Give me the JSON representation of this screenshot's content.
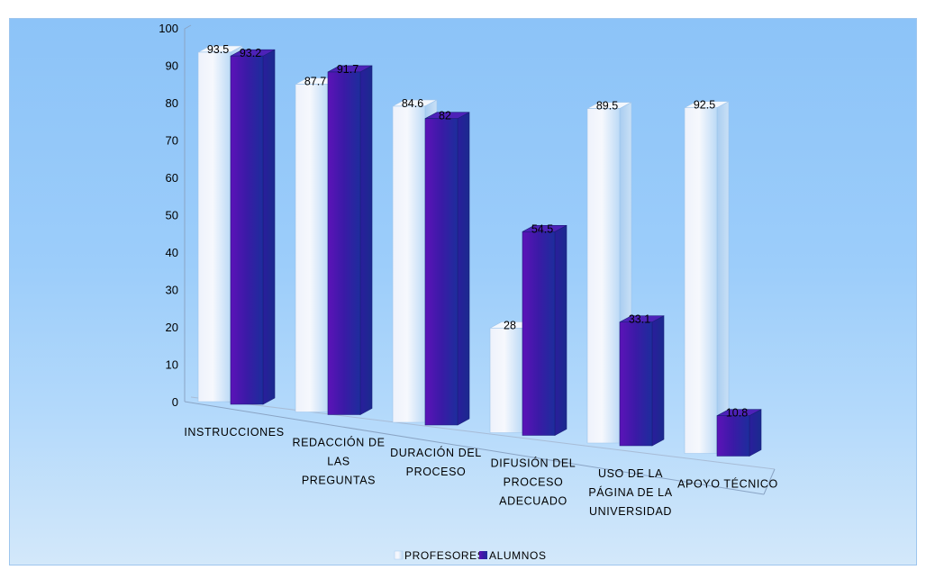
{
  "chart_data": {
    "type": "bar",
    "title": "",
    "xlabel": "",
    "ylabel": "",
    "ylim": [
      0,
      100
    ],
    "yticks": [
      0,
      10,
      20,
      30,
      40,
      50,
      60,
      70,
      80,
      90,
      100
    ],
    "categories": [
      [
        "INSTRUCCIONES"
      ],
      [
        "REDACCIÓN DE",
        "LAS",
        "PREGUNTAS"
      ],
      [
        "DURACIÓN DEL",
        "PROCESO"
      ],
      [
        "DIFUSIÓN DEL",
        "PROCESO",
        "ADECUADO"
      ],
      [
        "USO DE LA",
        "PÁGINA DE LA",
        "UNIVERSIDAD"
      ],
      [
        "APOYO TÉCNICO"
      ]
    ],
    "series": [
      {
        "name": "PROFESORES",
        "values": [
          93.5,
          87.7,
          84.6,
          28,
          89.5,
          92.5
        ],
        "labels": [
          "93.5",
          "87.7",
          "84.6",
          "28",
          "89.5",
          "92.5"
        ]
      },
      {
        "name": "ALUMNOS",
        "values": [
          93.2,
          91.7,
          82,
          54.5,
          33.1,
          10.8
        ],
        "labels": [
          "93.2",
          "91.7",
          "82",
          "54.5",
          "33.1",
          "10.8"
        ]
      }
    ],
    "legend_position": "bottom",
    "colors": {
      "profesores": "#e4eefc",
      "alumnos": "#3a1aa8"
    },
    "three_d": true
  }
}
